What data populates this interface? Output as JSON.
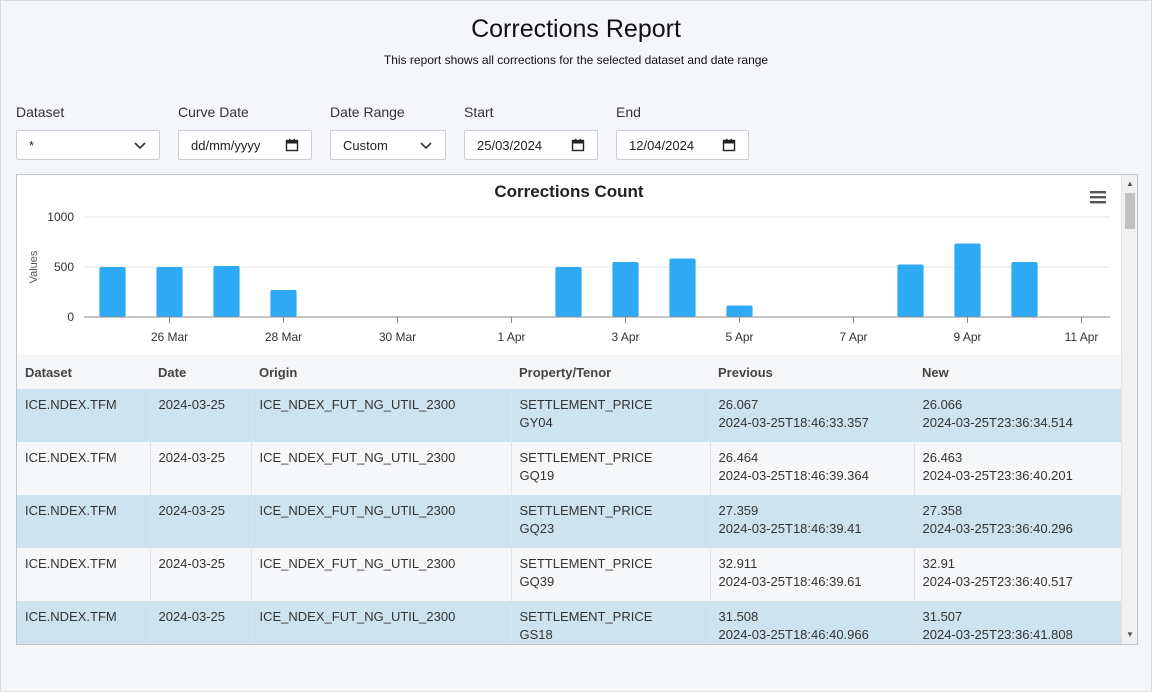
{
  "header": {
    "title": "Corrections Report",
    "subtitle": "This report shows all corrections for the selected dataset and date range"
  },
  "filters": {
    "dataset": {
      "label": "Dataset",
      "value": "*"
    },
    "curve_date": {
      "label": "Curve Date",
      "placeholder": "dd/mm/yyyy"
    },
    "date_range": {
      "label": "Date Range",
      "value": "Custom"
    },
    "start": {
      "label": "Start",
      "value": "25/03/2024"
    },
    "end": {
      "label": "End",
      "value": "12/04/2024"
    }
  },
  "icons": {
    "menu": "menu-icon",
    "select": "chevron-down-icon",
    "date": "calendar-icon"
  },
  "colors": {
    "bar": "#2eaaf5",
    "row_highlight": "#cde3f0"
  },
  "chart_data": {
    "type": "bar",
    "title": "Corrections Count",
    "ylabel": "Values",
    "ylim": [
      0,
      1000
    ],
    "yticks": [
      0,
      500,
      1000
    ],
    "x_dates": [
      "25 Mar",
      "26 Mar",
      "27 Mar",
      "28 Mar",
      "29 Mar",
      "30 Mar",
      "31 Mar",
      "1 Apr",
      "2 Apr",
      "3 Apr",
      "4 Apr",
      "5 Apr",
      "6 Apr",
      "7 Apr",
      "8 Apr",
      "9 Apr",
      "10 Apr",
      "11 Apr"
    ],
    "values": [
      500,
      500,
      510,
      270,
      0,
      0,
      0,
      0,
      500,
      550,
      585,
      115,
      0,
      0,
      525,
      735,
      550,
      5
    ],
    "xtick_labels": [
      {
        "label": "26 Mar",
        "index": 1
      },
      {
        "label": "28 Mar",
        "index": 3
      },
      {
        "label": "30 Mar",
        "index": 5
      },
      {
        "label": "1 Apr",
        "index": 7
      },
      {
        "label": "3 Apr",
        "index": 9
      },
      {
        "label": "5 Apr",
        "index": 11
      },
      {
        "label": "7 Apr",
        "index": 13
      },
      {
        "label": "9 Apr",
        "index": 15
      },
      {
        "label": "11 Apr",
        "index": 17
      }
    ],
    "grid": true,
    "legend": "none"
  },
  "table": {
    "columns": [
      "Dataset",
      "Date",
      "Origin",
      "Property/Tenor",
      "Previous",
      "New"
    ],
    "rows": [
      {
        "dataset": "ICE.NDEX.TFM",
        "date": "2024-03-25",
        "origin": "ICE_NDEX_FUT_NG_UTIL_2300",
        "property": "SETTLEMENT_PRICE",
        "tenor": "GY04",
        "prev_value": "26.067",
        "prev_time": "2024-03-25T18:46:33.357",
        "new_value": "26.066",
        "new_time": "2024-03-25T23:36:34.514"
      },
      {
        "dataset": "ICE.NDEX.TFM",
        "date": "2024-03-25",
        "origin": "ICE_NDEX_FUT_NG_UTIL_2300",
        "property": "SETTLEMENT_PRICE",
        "tenor": "GQ19",
        "prev_value": "26.464",
        "prev_time": "2024-03-25T18:46:39.364",
        "new_value": "26.463",
        "new_time": "2024-03-25T23:36:40.201"
      },
      {
        "dataset": "ICE.NDEX.TFM",
        "date": "2024-03-25",
        "origin": "ICE_NDEX_FUT_NG_UTIL_2300",
        "property": "SETTLEMENT_PRICE",
        "tenor": "GQ23",
        "prev_value": "27.359",
        "prev_time": "2024-03-25T18:46:39.41",
        "new_value": "27.358",
        "new_time": "2024-03-25T23:36:40.296"
      },
      {
        "dataset": "ICE.NDEX.TFM",
        "date": "2024-03-25",
        "origin": "ICE_NDEX_FUT_NG_UTIL_2300",
        "property": "SETTLEMENT_PRICE",
        "tenor": "GQ39",
        "prev_value": "32.911",
        "prev_time": "2024-03-25T18:46:39.61",
        "new_value": "32.91",
        "new_time": "2024-03-25T23:36:40.517"
      },
      {
        "dataset": "ICE.NDEX.TFM",
        "date": "2024-03-25",
        "origin": "ICE_NDEX_FUT_NG_UTIL_2300",
        "property": "SETTLEMENT_PRICE",
        "tenor": "GS18",
        "prev_value": "31.508",
        "prev_time": "2024-03-25T18:46:40.966",
        "new_value": "31.507",
        "new_time": "2024-03-25T23:36:41.808"
      }
    ]
  }
}
